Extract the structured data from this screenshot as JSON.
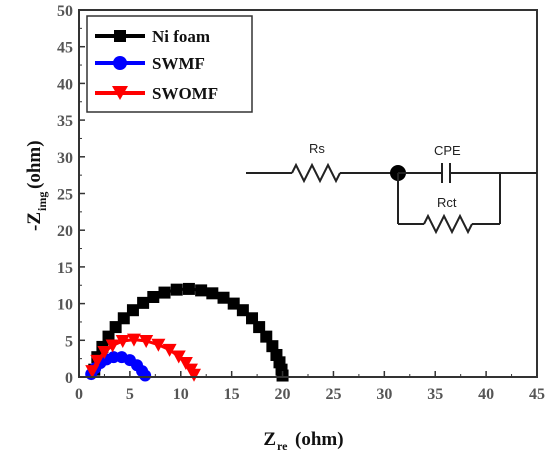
{
  "chart_data": {
    "type": "scatter",
    "title": "",
    "xlabel_main": "Z",
    "xlabel_sub": "re",
    "xlabel_unit": "(ohm)",
    "ylabel_main": "-Z",
    "ylabel_sub": "img",
    "ylabel_unit": "(ohm)",
    "xlim": [
      0,
      45
    ],
    "ylim": [
      0,
      50
    ],
    "xticks": [
      "0",
      "5",
      "10",
      "15",
      "20",
      "25",
      "30",
      "35",
      "40",
      "45"
    ],
    "yticks": [
      "0",
      "5",
      "10",
      "15",
      "20",
      "25",
      "30",
      "35",
      "40",
      "45",
      "50"
    ],
    "grid": false,
    "legend_position": "top-left",
    "series": [
      {
        "name": "Ni foam",
        "color": "#000000",
        "marker": "square",
        "x": [
          1.5,
          1.8,
          2.3,
          2.9,
          3.6,
          4.4,
          5.3,
          6.3,
          7.3,
          8.4,
          9.6,
          10.8,
          12.0,
          13.1,
          14.2,
          15.2,
          16.1,
          17.0,
          17.7,
          18.4,
          19.0,
          19.4,
          19.7,
          19.9,
          20.0
        ],
        "y": [
          1.0,
          2.7,
          4.1,
          5.5,
          6.8,
          8.0,
          9.1,
          10.1,
          10.9,
          11.5,
          11.9,
          12.0,
          11.8,
          11.4,
          10.8,
          10.0,
          9.1,
          8.0,
          6.8,
          5.5,
          4.2,
          3.0,
          2.0,
          1.0,
          0.2
        ]
      },
      {
        "name": "SWMF",
        "color": "#0000ff",
        "marker": "circle",
        "x": [
          1.2,
          1.6,
          2.1,
          2.7,
          3.4,
          4.2,
          5.0,
          5.7,
          6.2,
          6.5
        ],
        "y": [
          0.4,
          1.2,
          1.9,
          2.4,
          2.7,
          2.7,
          2.3,
          1.6,
          0.8,
          0.2
        ]
      },
      {
        "name": "SWOMF",
        "color": "#ff0000",
        "marker": "triangle-down",
        "x": [
          1.3,
          1.8,
          2.5,
          3.3,
          4.3,
          5.4,
          6.6,
          7.8,
          8.9,
          9.8,
          10.5,
          11.0,
          11.3
        ],
        "y": [
          0.8,
          2.2,
          3.4,
          4.3,
          4.9,
          5.1,
          4.9,
          4.4,
          3.7,
          2.8,
          1.9,
          1.0,
          0.3
        ]
      }
    ]
  },
  "inset": {
    "rs_label": "Rs",
    "cpe_label": "CPE",
    "rct_label": "Rct"
  }
}
